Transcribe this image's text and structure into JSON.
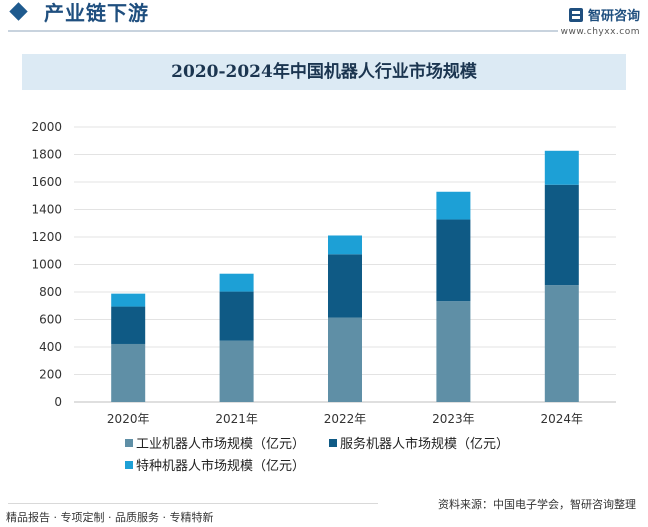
{
  "header": {
    "title": "产业链下游",
    "brand_name": "智研咨询",
    "brand_url": "www.chyxx.com"
  },
  "chart_data": {
    "type": "bar",
    "stacked": true,
    "title": "2020-2024年中国机器人行业市场规模",
    "categories": [
      "2020年",
      "2021年",
      "2022年",
      "2023年",
      "2024年"
    ],
    "series": [
      {
        "name": "工业机器人市场规模（亿元）",
        "values": [
          422,
          446,
          614,
          733,
          850
        ],
        "color": "#5f8fa6"
      },
      {
        "name": "服务机器人市场规模（亿元）",
        "values": [
          272,
          357,
          460,
          594,
          730
        ],
        "color": "#0f5a85"
      },
      {
        "name": "特种机器人市场规模（亿元）",
        "values": [
          94,
          130,
          137,
          202,
          247
        ],
        "color": "#1da0d6"
      }
    ],
    "ylim": [
      0,
      2000
    ],
    "yticks": [
      0,
      200,
      400,
      600,
      800,
      1000,
      1200,
      1400,
      1600,
      1800,
      2000
    ],
    "grid": true,
    "legend_position": "bottom"
  },
  "footer": {
    "left": "精品报告 · 专项定制 · 品质服务 · 专精特新",
    "right": "资料来源：中国电子学会，智研咨询整理"
  },
  "watermark": {
    "text": "智研咨询",
    "big": "智研咨询"
  }
}
